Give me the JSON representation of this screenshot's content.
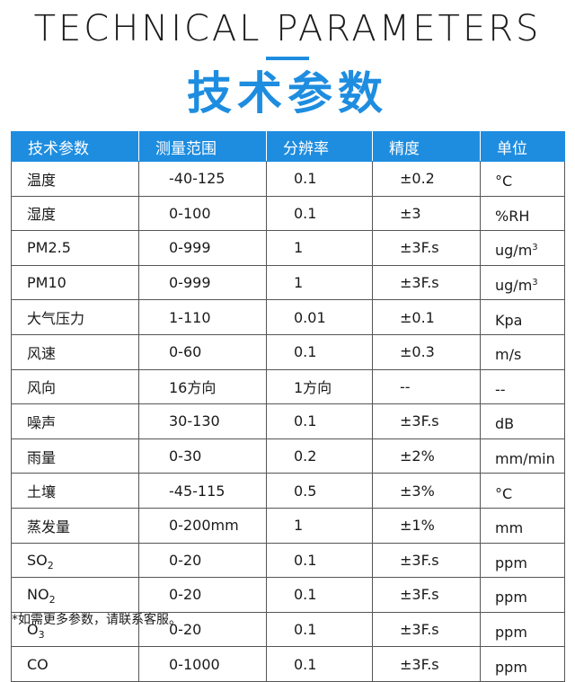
{
  "header": {
    "title_en": "TECHNICAL PARAMETERS",
    "title_zh": "技术参数",
    "accent_color": "#1e8de0"
  },
  "table": {
    "columns": [
      "技术参数",
      "测量范围",
      "分辨率",
      "精度",
      "单位"
    ],
    "rows": [
      {
        "name": "温度",
        "name_sub": "",
        "range": "-40-125",
        "resolution": "0.1",
        "accuracy": "±0.2",
        "unit": "°C",
        "unit_sup": ""
      },
      {
        "name": "湿度",
        "name_sub": "",
        "range": "0-100",
        "resolution": "0.1",
        "accuracy": "±3",
        "unit": "%RH",
        "unit_sup": ""
      },
      {
        "name": "PM2.5",
        "name_sub": "",
        "range": "0-999",
        "resolution": "1",
        "accuracy": "±3F.s",
        "unit": "ug/m",
        "unit_sup": "3"
      },
      {
        "name": "PM10",
        "name_sub": "",
        "range": "0-999",
        "resolution": "1",
        "accuracy": "±3F.s",
        "unit": "ug/m",
        "unit_sup": "3"
      },
      {
        "name": "大气压力",
        "name_sub": "",
        "range": "1-110",
        "resolution": "0.01",
        "accuracy": "±0.1",
        "unit": "Kpa",
        "unit_sup": ""
      },
      {
        "name": "风速",
        "name_sub": "",
        "range": "0-60",
        "resolution": "0.1",
        "accuracy": "±0.3",
        "unit": "m/s",
        "unit_sup": ""
      },
      {
        "name": "风向",
        "name_sub": "",
        "range": "16方向",
        "resolution": "1方向",
        "accuracy": "--",
        "unit": "--",
        "unit_sup": ""
      },
      {
        "name": "噪声",
        "name_sub": "",
        "range": "30-130",
        "resolution": "0.1",
        "accuracy": "±3F.s",
        "unit": "dB",
        "unit_sup": ""
      },
      {
        "name": "雨量",
        "name_sub": "",
        "range": "0-30",
        "resolution": "0.2",
        "accuracy": "±2%",
        "unit": "mm/min",
        "unit_sup": ""
      },
      {
        "name": "土壤",
        "name_sub": "",
        "range": "-45-115",
        "resolution": "0.5",
        "accuracy": "±3%",
        "unit": "°C",
        "unit_sup": ""
      },
      {
        "name": "蒸发量",
        "name_sub": "",
        "range": "0-200mm",
        "resolution": "1",
        "accuracy": "±1%",
        "unit": "mm",
        "unit_sup": ""
      },
      {
        "name": "SO",
        "name_sub": "2",
        "range": "0-20",
        "resolution": "0.1",
        "accuracy": "±3F.s",
        "unit": "ppm",
        "unit_sup": ""
      },
      {
        "name": "NO",
        "name_sub": "2",
        "range": "0-20",
        "resolution": "0.1",
        "accuracy": "±3F.s",
        "unit": "ppm",
        "unit_sup": ""
      },
      {
        "name": "O",
        "name_sub": "3",
        "range": "0-20",
        "resolution": "0.1",
        "accuracy": "±3F.s",
        "unit": "ppm",
        "unit_sup": ""
      },
      {
        "name": "CO",
        "name_sub": "",
        "range": "0-1000",
        "resolution": "0.1",
        "accuracy": "±3F.s",
        "unit": "ppm",
        "unit_sup": ""
      }
    ]
  },
  "footnote": "*如需更多参数，请联系客服。"
}
